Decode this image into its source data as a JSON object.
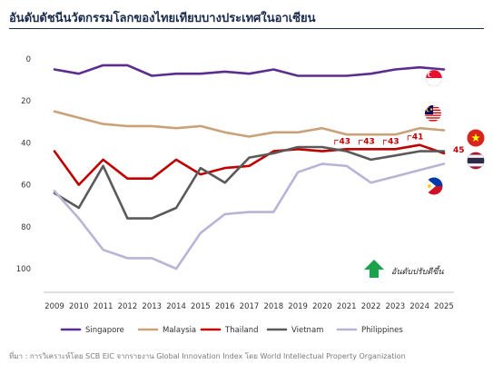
{
  "title": "อันดับดัชนีนวัตกรรมโลกของไทยเทียบบางประเทศในอาเซียน",
  "source": "ที่มา : การวิเคราะห์โดย SCB EIC จากรายงาน Global Innovation Index โดย World Intellectual Property Organization",
  "annotation": "อันดับปรับดีขึ้น",
  "colors": {
    "Singapore": "#5b2d8e",
    "Malaysia": "#c9a27a",
    "Thailand": "#c00000",
    "Vietnam": "#5a5a5a",
    "Philippines": "#b8b4d6",
    "label": "#c00000",
    "arrow": "#1aa34a"
  },
  "chart_data": {
    "type": "line",
    "x": [
      2009,
      2010,
      2011,
      2012,
      2013,
      2014,
      2015,
      2016,
      2017,
      2018,
      2019,
      2020,
      2021,
      2022,
      2023,
      2024,
      2025
    ],
    "ylim": [
      0,
      100
    ],
    "y_inverted": true,
    "yticks": [
      0,
      20,
      40,
      60,
      80,
      100
    ],
    "legend_position": "bottom",
    "grid": false,
    "series": [
      {
        "name": "Singapore",
        "values": [
          5,
          7,
          3,
          3,
          8,
          7,
          7,
          6,
          7,
          5,
          8,
          8,
          8,
          7,
          5,
          4,
          5
        ]
      },
      {
        "name": "Malaysia",
        "values": [
          25,
          28,
          31,
          32,
          32,
          33,
          32,
          35,
          37,
          35,
          35,
          33,
          36,
          36,
          36,
          33,
          34
        ]
      },
      {
        "name": "Thailand",
        "values": [
          44,
          60,
          48,
          57,
          57,
          48,
          55,
          52,
          51,
          44,
          43,
          44,
          43,
          43,
          43,
          41,
          45
        ]
      },
      {
        "name": "Vietnam",
        "values": [
          64,
          71,
          51,
          76,
          76,
          71,
          52,
          59,
          47,
          45,
          42,
          42,
          44,
          48,
          46,
          44,
          44
        ]
      },
      {
        "name": "Philippines",
        "values": [
          63,
          76,
          91,
          95,
          95,
          100,
          83,
          74,
          73,
          73,
          54,
          50,
          51,
          59,
          56,
          53,
          50
        ]
      }
    ],
    "data_labels": [
      {
        "series": "Thailand",
        "x": 2021,
        "text": "43"
      },
      {
        "series": "Thailand",
        "x": 2022,
        "text": "43"
      },
      {
        "series": "Thailand",
        "x": 2023,
        "text": "43"
      },
      {
        "series": "Thailand",
        "x": 2024,
        "text": "41"
      },
      {
        "series": "Thailand",
        "x": 2025,
        "text": "45"
      }
    ]
  }
}
